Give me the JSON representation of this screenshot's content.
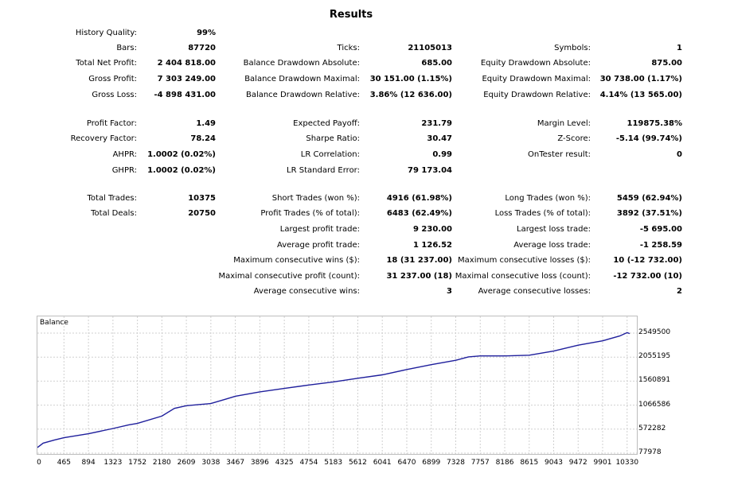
{
  "report": {
    "title": "Results",
    "history_quality": {
      "label": "History Quality:",
      "value": "99%"
    },
    "bars": {
      "label": "Bars:",
      "value": "87720"
    },
    "ticks": {
      "label": "Ticks:",
      "value": "21105013"
    },
    "symbols": {
      "label": "Symbols:",
      "value": "1"
    },
    "total_net_profit": {
      "label": "Total Net Profit:",
      "value": "2 404 818.00"
    },
    "balance_dd_abs": {
      "label": "Balance Drawdown Absolute:",
      "value": "685.00"
    },
    "equity_dd_abs": {
      "label": "Equity Drawdown Absolute:",
      "value": "875.00"
    },
    "gross_profit": {
      "label": "Gross Profit:",
      "value": "7 303 249.00"
    },
    "balance_dd_max": {
      "label": "Balance Drawdown Maximal:",
      "value": "30 151.00 (1.15%)"
    },
    "equity_dd_max": {
      "label": "Equity Drawdown Maximal:",
      "value": "30 738.00 (1.17%)"
    },
    "gross_loss": {
      "label": "Gross Loss:",
      "value": "-4 898 431.00"
    },
    "balance_dd_rel": {
      "label": "Balance Drawdown Relative:",
      "value": "3.86% (12 636.00)"
    },
    "equity_dd_rel": {
      "label": "Equity Drawdown Relative:",
      "value": "4.14% (13 565.00)"
    },
    "profit_factor": {
      "label": "Profit Factor:",
      "value": "1.49"
    },
    "expected_payoff": {
      "label": "Expected Payoff:",
      "value": "231.79"
    },
    "margin_level": {
      "label": "Margin Level:",
      "value": "119875.38%"
    },
    "recovery_factor": {
      "label": "Recovery Factor:",
      "value": "78.24"
    },
    "sharpe_ratio": {
      "label": "Sharpe Ratio:",
      "value": "30.47"
    },
    "z_score": {
      "label": "Z-Score:",
      "value": "-5.14 (99.74%)"
    },
    "ahpr": {
      "label": "AHPR:",
      "value": "1.0002 (0.02%)"
    },
    "lr_correlation": {
      "label": "LR Correlation:",
      "value": "0.99"
    },
    "ontester_result": {
      "label": "OnTester result:",
      "value": "0"
    },
    "ghpr": {
      "label": "GHPR:",
      "value": "1.0002 (0.02%)"
    },
    "lr_std_error": {
      "label": "LR Standard Error:",
      "value": "79 173.04"
    },
    "total_trades": {
      "label": "Total Trades:",
      "value": "10375"
    },
    "short_trades": {
      "label": "Short Trades (won %):",
      "value": "4916 (61.98%)"
    },
    "long_trades": {
      "label": "Long Trades (won %):",
      "value": "5459 (62.94%)"
    },
    "total_deals": {
      "label": "Total Deals:",
      "value": "20750"
    },
    "profit_trades": {
      "label": "Profit Trades (% of total):",
      "value": "6483 (62.49%)"
    },
    "loss_trades": {
      "label": "Loss Trades (% of total):",
      "value": "3892 (37.51%)"
    },
    "largest_profit": {
      "label": "Largest profit trade:",
      "value": "9 230.00"
    },
    "largest_loss": {
      "label": "Largest loss trade:",
      "value": "-5 695.00"
    },
    "avg_profit": {
      "label": "Average profit trade:",
      "value": "1 126.52"
    },
    "avg_loss": {
      "label": "Average loss trade:",
      "value": "-1 258.59"
    },
    "max_consec_wins": {
      "label": "Maximum consecutive wins ($):",
      "value": "18 (31 237.00)"
    },
    "max_consec_losses": {
      "label": "Maximum consecutive losses ($):",
      "value": "10 (-12 732.00)"
    },
    "maximal_consec_profit": {
      "label": "Maximal consecutive profit (count):",
      "value": "31 237.00 (18)"
    },
    "maximal_consec_loss": {
      "label": "Maximal consecutive loss (count):",
      "value": "-12 732.00 (10)"
    },
    "avg_consec_wins": {
      "label": "Average consecutive wins:",
      "value": "3"
    },
    "avg_consec_losses": {
      "label": "Average consecutive losses:",
      "value": "2"
    }
  },
  "chart_data": {
    "type": "line",
    "title": "Balance",
    "xlabel": "",
    "ylabel": "",
    "x_ticks": [
      "0",
      "465",
      "894",
      "1323",
      "1752",
      "2180",
      "2609",
      "3038",
      "3467",
      "3896",
      "4325",
      "4754",
      "5183",
      "5612",
      "6041",
      "6470",
      "6899",
      "7328",
      "7757",
      "8186",
      "8615",
      "9043",
      "9472",
      "9901",
      "10330"
    ],
    "y_ticks": [
      "2549500",
      "2055195",
      "1560891",
      "1066586",
      "572282",
      "77978"
    ],
    "xlim": [
      0,
      10375
    ],
    "ylim": [
      77978,
      2549500
    ],
    "grid": true,
    "line_color": "#1f1f9c",
    "series": [
      {
        "x": [
          0,
          100,
          300,
          465,
          894,
          1323,
          1600,
          1752,
          2180,
          2400,
          2609,
          3038,
          3300,
          3467,
          3896,
          4325,
          4754,
          5183,
          5612,
          6041,
          6470,
          6899,
          7328,
          7550,
          7757,
          8186,
          8615,
          9043,
          9472,
          9901,
          10200,
          10330,
          10375
        ],
        "y": [
          195000,
          285000,
          350000,
          395000,
          478000,
          585000,
          660000,
          690000,
          840000,
          1000000,
          1055000,
          1100000,
          1190000,
          1250000,
          1340000,
          1410000,
          1480000,
          1545000,
          1620000,
          1690000,
          1800000,
          1900000,
          1990000,
          2060000,
          2080000,
          2080000,
          2095000,
          2180000,
          2300000,
          2390000,
          2490000,
          2560000,
          2540000
        ]
      }
    ]
  }
}
